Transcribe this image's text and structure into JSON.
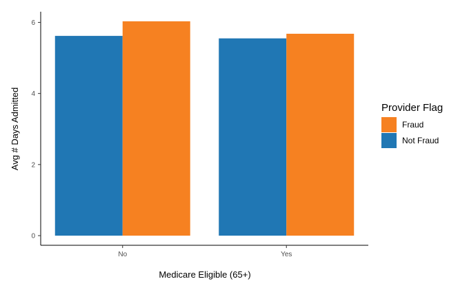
{
  "chart_data": {
    "type": "bar",
    "categories": [
      "No",
      "Yes"
    ],
    "series": [
      {
        "name": "Not Fraud",
        "values": [
          5.62,
          5.55
        ],
        "color": "#2077b4"
      },
      {
        "name": "Fraud",
        "values": [
          6.03,
          5.68
        ],
        "color": "#f68121"
      }
    ],
    "xlabel": "Medicare Eligible (65+)",
    "ylabel": "Avg # Days Admitted",
    "ylim": [
      0,
      6.3
    ],
    "yticks": [
      "0",
      "2",
      "4",
      "6"
    ],
    "grid": false,
    "legend": {
      "title": "Provider Flag",
      "placement": "right",
      "entries": [
        {
          "name": "Fraud",
          "color": "#f68121"
        },
        {
          "name": "Not Fraud",
          "color": "#2077b4"
        }
      ]
    }
  }
}
